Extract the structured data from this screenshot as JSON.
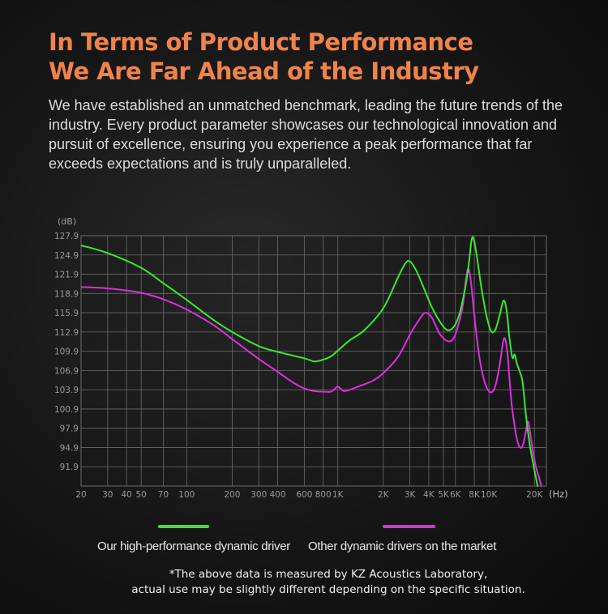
{
  "header": {
    "title_line1": "In Terms of Product Performance",
    "title_line2": "We Are Far Ahead of the Industry",
    "intro": "We have established an unmatched benchmark, leading the future trends of the industry. Every product parameter showcases our technological innovation and pursuit of excellence, ensuring you experience a peak performance that far exceeds expectations and is truly unparalleled."
  },
  "colors": {
    "title": "#f0834a",
    "kz_series": "#39e82e",
    "other_series": "#dc2ee0",
    "grid": "#6a6a6a"
  },
  "chart_data": {
    "type": "line",
    "title": "",
    "xlabel": "(Hz)",
    "ylabel": "(dB)",
    "xscale": "log",
    "xlim": [
      20,
      24000
    ],
    "ylim": [
      88.9,
      127.9
    ],
    "grid": true,
    "legend_position": "bottom",
    "x_ticks": [
      {
        "value": 20,
        "label": "20"
      },
      {
        "value": 30,
        "label": "30"
      },
      {
        "value": 40,
        "label": "40"
      },
      {
        "value": 50,
        "label": "50"
      },
      {
        "value": 70,
        "label": "70"
      },
      {
        "value": 100,
        "label": "100"
      },
      {
        "value": 200,
        "label": "200"
      },
      {
        "value": 300,
        "label": "300"
      },
      {
        "value": 400,
        "label": "400"
      },
      {
        "value": 600,
        "label": "600"
      },
      {
        "value": 800,
        "label": "800"
      },
      {
        "value": 1000,
        "label": "1K"
      },
      {
        "value": 2000,
        "label": "2K"
      },
      {
        "value": 3000,
        "label": "3K"
      },
      {
        "value": 4000,
        "label": "4K"
      },
      {
        "value": 5000,
        "label": "5K"
      },
      {
        "value": 6000,
        "label": "6K"
      },
      {
        "value": 8000,
        "label": "8K"
      },
      {
        "value": 10000,
        "label": "10K"
      },
      {
        "value": 20000,
        "label": "20K"
      }
    ],
    "y_ticks": [
      127.9,
      124.9,
      121.9,
      118.9,
      115.9,
      112.9,
      109.9,
      106.9,
      103.9,
      100.9,
      97.9,
      94.9,
      91.9
    ],
    "series": [
      {
        "name": "Our high-performance dynamic driver",
        "color": "#39e82e",
        "points": [
          [
            20,
            126.4
          ],
          [
            30,
            125.2
          ],
          [
            50,
            122.9
          ],
          [
            70,
            120.5
          ],
          [
            100,
            117.9
          ],
          [
            150,
            114.8
          ],
          [
            200,
            112.9
          ],
          [
            300,
            110.7
          ],
          [
            400,
            109.8
          ],
          [
            600,
            108.8
          ],
          [
            700,
            108.3
          ],
          [
            800,
            108.6
          ],
          [
            900,
            109.1
          ],
          [
            1000,
            110.0
          ],
          [
            1200,
            111.6
          ],
          [
            1500,
            113.2
          ],
          [
            2000,
            116.6
          ],
          [
            2500,
            121.4
          ],
          [
            2800,
            123.6
          ],
          [
            3000,
            123.9
          ],
          [
            3300,
            122.5
          ],
          [
            3700,
            119.8
          ],
          [
            4200,
            116.7
          ],
          [
            4800,
            114.3
          ],
          [
            5300,
            113.2
          ],
          [
            5800,
            113.6
          ],
          [
            6300,
            115.3
          ],
          [
            6800,
            118.5
          ],
          [
            7300,
            122.8
          ],
          [
            7650,
            127.0
          ],
          [
            7900,
            127.5
          ],
          [
            8300,
            124.9
          ],
          [
            8900,
            119.9
          ],
          [
            9600,
            115.6
          ],
          [
            10300,
            113.1
          ],
          [
            11000,
            113.2
          ],
          [
            11800,
            115.6
          ],
          [
            12500,
            117.8
          ],
          [
            13100,
            116.2
          ],
          [
            13700,
            111.8
          ],
          [
            14300,
            108.9
          ],
          [
            14800,
            109.4
          ],
          [
            15300,
            108.0
          ],
          [
            16000,
            106.7
          ],
          [
            16700,
            105.1
          ],
          [
            17500,
            100.4
          ],
          [
            18500,
            95.8
          ],
          [
            19700,
            92.2
          ],
          [
            21000,
            88.9
          ]
        ]
      },
      {
        "name": "Other dynamic drivers on the market",
        "color": "#dc2ee0",
        "points": [
          [
            20,
            119.9
          ],
          [
            30,
            119.7
          ],
          [
            50,
            119.0
          ],
          [
            70,
            118.0
          ],
          [
            100,
            116.4
          ],
          [
            150,
            114.0
          ],
          [
            200,
            111.8
          ],
          [
            300,
            108.7
          ],
          [
            400,
            106.7
          ],
          [
            500,
            105.1
          ],
          [
            600,
            104.1
          ],
          [
            700,
            103.7
          ],
          [
            800,
            103.6
          ],
          [
            900,
            103.6
          ],
          [
            950,
            104.0
          ],
          [
            1000,
            104.4
          ],
          [
            1050,
            104.0
          ],
          [
            1100,
            103.7
          ],
          [
            1200,
            103.9
          ],
          [
            1400,
            104.5
          ],
          [
            1700,
            105.3
          ],
          [
            2000,
            106.5
          ],
          [
            2500,
            109.0
          ],
          [
            3000,
            112.5
          ],
          [
            3500,
            115.0
          ],
          [
            3800,
            115.9
          ],
          [
            4200,
            115.1
          ],
          [
            4700,
            112.7
          ],
          [
            5300,
            111.5
          ],
          [
            5800,
            111.8
          ],
          [
            6200,
            113.6
          ],
          [
            6700,
            116.9
          ],
          [
            7100,
            121.6
          ],
          [
            7350,
            122.7
          ],
          [
            7650,
            120.2
          ],
          [
            8100,
            114.3
          ],
          [
            8700,
            108.6
          ],
          [
            9400,
            105.0
          ],
          [
            10200,
            103.5
          ],
          [
            11000,
            104.4
          ],
          [
            11800,
            107.9
          ],
          [
            12400,
            111.3
          ],
          [
            12800,
            111.8
          ],
          [
            13300,
            109.3
          ],
          [
            14000,
            102.6
          ],
          [
            14800,
            98.2
          ],
          [
            15600,
            95.5
          ],
          [
            16500,
            94.9
          ],
          [
            17200,
            96.3
          ],
          [
            17900,
            98.5
          ],
          [
            18300,
            98.8
          ],
          [
            18800,
            96.9
          ],
          [
            19600,
            94.2
          ],
          [
            20500,
            91.8
          ],
          [
            21400,
            90.3
          ],
          [
            22200,
            88.9
          ]
        ]
      }
    ]
  },
  "legend": {
    "kz_label": "Our high-performance dynamic driver",
    "other_label": "Other dynamic drivers on the market"
  },
  "footnote": {
    "line1": "*The above data is measured by KZ Acoustics Laboratory,",
    "line2": "actual use may be slightly different depending on the specific situation."
  }
}
